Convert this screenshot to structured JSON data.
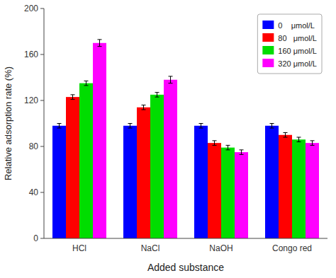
{
  "chart_data": {
    "type": "bar",
    "categories": [
      "HCl",
      "NaCl",
      "NaOH",
      "Congo red"
    ],
    "series": [
      {
        "name": "0    μmol/L",
        "color": "#0000FF",
        "values": [
          98,
          98,
          98,
          98
        ],
        "errors": [
          2,
          2,
          2,
          2
        ]
      },
      {
        "name": "80   μmol/L",
        "color": "#FF0000",
        "values": [
          123,
          114,
          83,
          90
        ],
        "errors": [
          2,
          2,
          2,
          2
        ]
      },
      {
        "name": "160 μmol/L",
        "color": "#00DD00",
        "values": [
          135,
          125,
          79,
          86
        ],
        "errors": [
          2,
          2,
          2,
          2
        ]
      },
      {
        "name": "320 μmol/L",
        "color": "#FF00FF",
        "values": [
          170,
          138,
          75,
          83
        ],
        "errors": [
          3,
          3,
          2,
          2
        ]
      }
    ],
    "xlabel": "Added substance",
    "ylabel": "Relative adsorption rate (%)",
    "ylim": [
      0,
      200
    ],
    "yticks": [
      0,
      40,
      80,
      120,
      160,
      200
    ],
    "grid": false,
    "legend": "upper right"
  }
}
